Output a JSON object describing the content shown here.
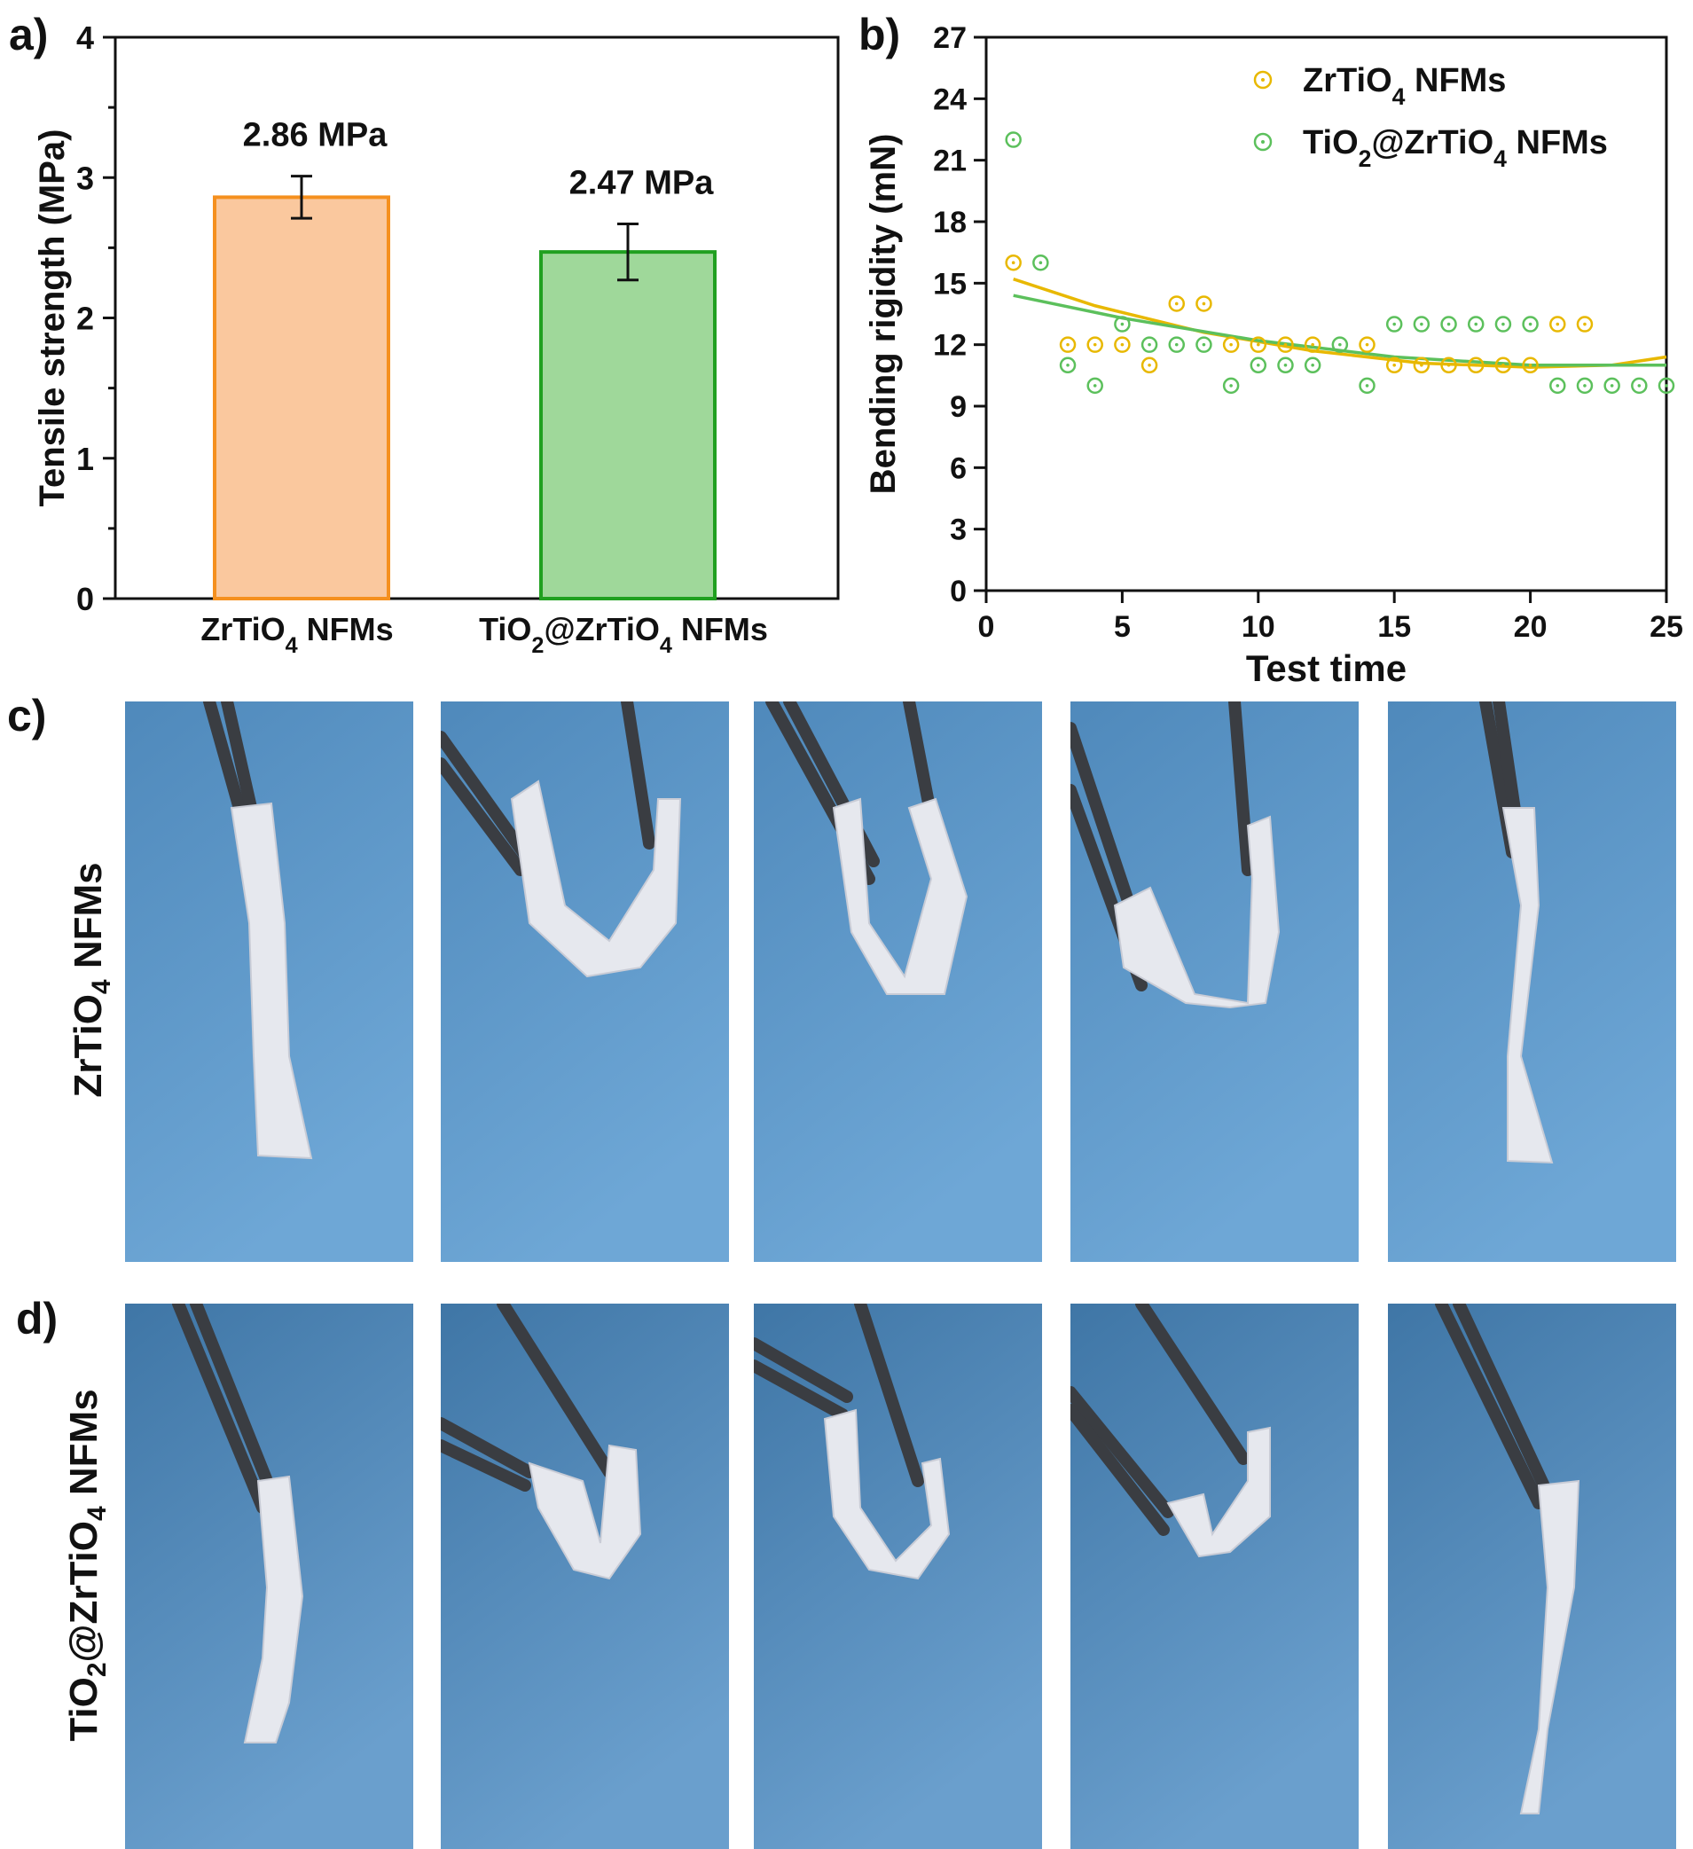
{
  "panel_labels": {
    "a": "a)",
    "b": "b)",
    "c": "c)",
    "d": "d)"
  },
  "row_labels": {
    "c": {
      "pre": "ZrTiO",
      "sub": "4",
      "post": " NFMs"
    },
    "d": {
      "pre": "TiO",
      "sub1": "2",
      "mid": "@ZrTiO",
      "sub2": "4",
      "post": " NFMs"
    }
  },
  "colors": {
    "orange_fill": "#fac89e",
    "orange_edge": "#f5901e",
    "green_fill": "#9fd89a",
    "green_edge": "#20a020",
    "yellow_marker": "#e8b800",
    "green_marker": "#5cc05c",
    "photo_blue": "#5f97c6",
    "strip": "#e6e8ee",
    "tweezer": "#3a3d42"
  },
  "chart_data": [
    {
      "type": "bar",
      "panel": "a",
      "ylabel": "Tensile strength (MPa)",
      "ylim": [
        0,
        4
      ],
      "yticks": [
        "0",
        "1",
        "2",
        "3",
        "4"
      ],
      "categories": [
        {
          "pre": "ZrTiO",
          "sub": "4",
          "post": " NFMs"
        },
        {
          "pre": "TiO",
          "sub1": "2",
          "mid": "@ZrTiO",
          "sub2": "4",
          "post": " NFMs"
        }
      ],
      "values": [
        2.86,
        2.47
      ],
      "errors": [
        0.15,
        0.2
      ],
      "data_labels": [
        "2.86 MPa",
        "2.47 MPa"
      ]
    },
    {
      "type": "scatter",
      "panel": "b",
      "xlabel": "Test time",
      "ylabel": "Bending rigidity (mN)",
      "xlim": [
        0,
        25
      ],
      "ylim": [
        0,
        27
      ],
      "xticks": [
        "0",
        "5",
        "10",
        "15",
        "20",
        "25"
      ],
      "yticks": [
        "0",
        "3",
        "6",
        "9",
        "12",
        "15",
        "18",
        "21",
        "24",
        "27"
      ],
      "legend_position": "top-right",
      "series": [
        {
          "name": {
            "pre": "ZrTiO",
            "sub": "4",
            "post": " NFMs"
          },
          "x": [
            1,
            3,
            4,
            5,
            6,
            7,
            8,
            9,
            10,
            11,
            12,
            14,
            15,
            16,
            17,
            18,
            19,
            20,
            21,
            22
          ],
          "y": [
            16,
            12,
            12,
            12,
            11,
            14,
            14,
            12,
            12,
            12,
            12,
            12,
            11,
            11,
            11,
            11,
            11,
            11,
            13,
            13
          ],
          "fit": [
            [
              1,
              15.2
            ],
            [
              4,
              13.9
            ],
            [
              8,
              12.6
            ],
            [
              12,
              11.7
            ],
            [
              16,
              11.1
            ],
            [
              20,
              10.9
            ],
            [
              23,
              11.0
            ],
            [
              25,
              11.4
            ]
          ]
        },
        {
          "name": {
            "pre": "TiO",
            "sub1": "2",
            "mid": "@ZrTiO",
            "sub2": "4",
            "post": " NFMs"
          },
          "x": [
            1,
            2,
            3,
            4,
            5,
            6,
            7,
            8,
            9,
            10,
            11,
            12,
            13,
            14,
            15,
            16,
            17,
            18,
            19,
            20,
            21,
            22,
            23,
            24,
            25
          ],
          "y": [
            22,
            16,
            11,
            10,
            13,
            12,
            12,
            12,
            10,
            11,
            11,
            11,
            12,
            10,
            13,
            13,
            13,
            13,
            13,
            13,
            10,
            10,
            10,
            10,
            10
          ],
          "fit": [
            [
              1,
              14.4
            ],
            [
              5,
              13.3
            ],
            [
              10,
              12.2
            ],
            [
              15,
              11.4
            ],
            [
              20,
              11.0
            ],
            [
              25,
              11.0
            ]
          ]
        }
      ]
    }
  ]
}
